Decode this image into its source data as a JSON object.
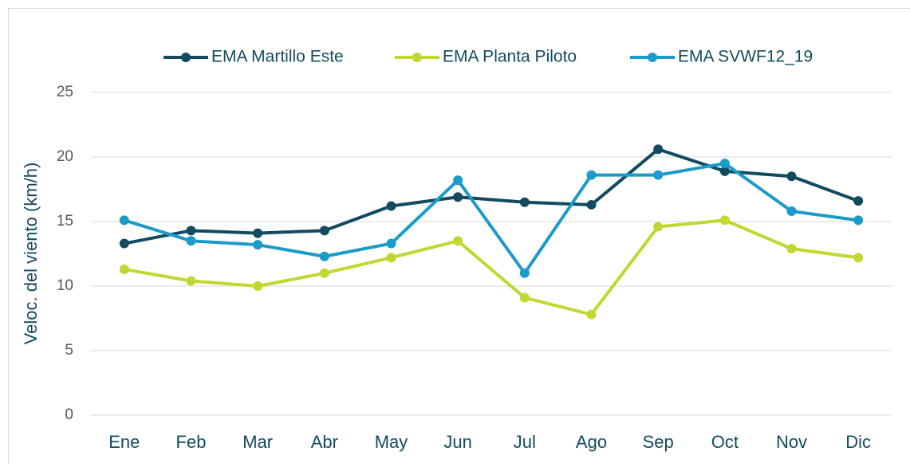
{
  "chart_data": {
    "type": "line",
    "categories": [
      "Ene",
      "Feb",
      "Mar",
      "Abr",
      "May",
      "Jun",
      "Jul",
      "Ago",
      "Sep",
      "Oct",
      "Nov",
      "Dic"
    ],
    "series": [
      {
        "name": "EMA Martillo Este",
        "color": "#124b5f",
        "values": [
          13.3,
          14.3,
          14.1,
          14.3,
          16.2,
          16.9,
          16.5,
          16.3,
          20.6,
          18.9,
          18.5,
          16.6
        ]
      },
      {
        "name": "EMA Planta Piloto",
        "color": "#c3d631",
        "values": [
          11.3,
          10.4,
          10.0,
          11.0,
          12.2,
          13.5,
          9.1,
          7.8,
          14.6,
          15.1,
          12.9,
          12.2
        ]
      },
      {
        "name": "EMA SVWF12_19",
        "color": "#1b9bc9",
        "values": [
          15.1,
          13.5,
          13.2,
          12.3,
          13.3,
          18.2,
          11.0,
          18.6,
          18.6,
          19.5,
          15.8,
          15.1
        ]
      }
    ],
    "y_axis_label": "Veloc. del viento (km/h)",
    "ylim": [
      0,
      25
    ],
    "yticks": [
      0,
      5,
      10,
      15,
      20,
      25
    ],
    "grid": true,
    "legend": "top"
  }
}
